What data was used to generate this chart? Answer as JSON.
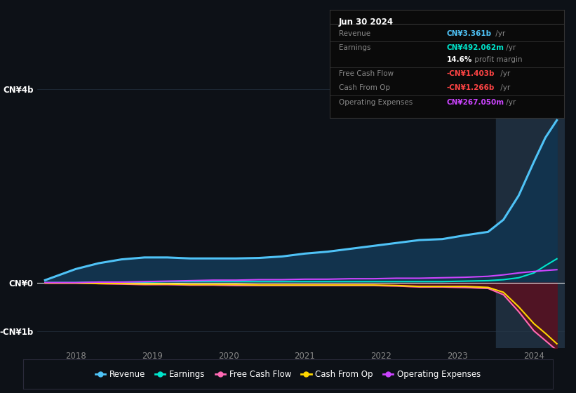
{
  "background_color": "#0d1117",
  "plot_bg_color": "#0d1117",
  "highlight_bg_color": "#1e2d3d",
  "title_box": {
    "date": "Jun 30 2024",
    "rows": [
      {
        "label": "Revenue",
        "value": "CN¥3.361b",
        "suffix": " /yr",
        "value_color": "#4fc3f7"
      },
      {
        "label": "Earnings",
        "value": "CN¥492.062m",
        "suffix": " /yr",
        "value_color": "#00e5cc"
      },
      {
        "label": "",
        "value": "14.6%",
        "suffix": " profit margin",
        "value_color": "#ffffff"
      },
      {
        "label": "Free Cash Flow",
        "value": "-CN¥1.403b",
        "suffix": " /yr",
        "value_color": "#ff4444"
      },
      {
        "label": "Cash From Op",
        "value": "-CN¥1.266b",
        "suffix": " /yr",
        "value_color": "#ff4444"
      },
      {
        "label": "Operating Expenses",
        "value": "CN¥267.050m",
        "suffix": " /yr",
        "value_color": "#cc44ff"
      }
    ]
  },
  "years": [
    2017.6,
    2018.0,
    2018.3,
    2018.6,
    2018.9,
    2019.2,
    2019.5,
    2019.8,
    2020.1,
    2020.4,
    2020.7,
    2021.0,
    2021.3,
    2021.6,
    2021.9,
    2022.2,
    2022.5,
    2022.8,
    2023.1,
    2023.4,
    2023.6,
    2023.8,
    2024.0,
    2024.15,
    2024.3
  ],
  "revenue": [
    0.05,
    0.28,
    0.4,
    0.48,
    0.52,
    0.52,
    0.5,
    0.5,
    0.5,
    0.51,
    0.54,
    0.6,
    0.64,
    0.7,
    0.76,
    0.82,
    0.88,
    0.9,
    0.98,
    1.05,
    1.3,
    1.8,
    2.5,
    3.0,
    3.361
  ],
  "earnings": [
    0.0,
    0.0,
    0.01,
    0.01,
    0.01,
    0.02,
    0.02,
    0.02,
    0.02,
    0.02,
    0.02,
    0.02,
    0.02,
    0.02,
    0.02,
    0.02,
    0.02,
    0.02,
    0.03,
    0.04,
    0.06,
    0.1,
    0.2,
    0.35,
    0.492
  ],
  "free_cash_flow": [
    -0.01,
    -0.01,
    -0.02,
    -0.03,
    -0.04,
    -0.04,
    -0.05,
    -0.05,
    -0.06,
    -0.06,
    -0.06,
    -0.06,
    -0.06,
    -0.06,
    -0.06,
    -0.07,
    -0.09,
    -0.09,
    -0.1,
    -0.12,
    -0.25,
    -0.6,
    -1.0,
    -1.2,
    -1.403
  ],
  "cash_from_op": [
    -0.01,
    -0.01,
    -0.02,
    -0.02,
    -0.03,
    -0.03,
    -0.04,
    -0.04,
    -0.04,
    -0.05,
    -0.05,
    -0.05,
    -0.05,
    -0.05,
    -0.05,
    -0.06,
    -0.08,
    -0.08,
    -0.08,
    -0.1,
    -0.2,
    -0.5,
    -0.85,
    -1.05,
    -1.266
  ],
  "op_expenses": [
    0.0,
    0.0,
    0.01,
    0.01,
    0.02,
    0.03,
    0.04,
    0.05,
    0.05,
    0.06,
    0.06,
    0.07,
    0.07,
    0.08,
    0.08,
    0.09,
    0.09,
    0.1,
    0.11,
    0.13,
    0.16,
    0.2,
    0.23,
    0.25,
    0.267
  ],
  "xlim": [
    2017.5,
    2024.4
  ],
  "ylim": [
    -1.35,
    4.1
  ],
  "yticks": [
    -1.0,
    0.0,
    4.0
  ],
  "ytick_labels": [
    "-CN¥1b",
    "CN¥0",
    "CN¥4b"
  ],
  "xticks": [
    2018,
    2019,
    2020,
    2021,
    2022,
    2023,
    2024
  ],
  "highlight_start": 2023.5,
  "highlight_end": 2024.5,
  "legend_items": [
    {
      "label": "Revenue",
      "color": "#4fc3f7"
    },
    {
      "label": "Earnings",
      "color": "#00e5cc"
    },
    {
      "label": "Free Cash Flow",
      "color": "#ff69b4"
    },
    {
      "label": "Cash From Op",
      "color": "#ffd700"
    },
    {
      "label": "Operating Expenses",
      "color": "#cc44ff"
    }
  ],
  "revenue_color": "#4fc3f7",
  "earnings_color": "#00e5cc",
  "fcf_color": "#ff69b4",
  "cashop_color": "#ffd700",
  "opex_color": "#cc44ff",
  "revenue_fill_color": "#12334d",
  "negative_fill_color": "#5a1020"
}
